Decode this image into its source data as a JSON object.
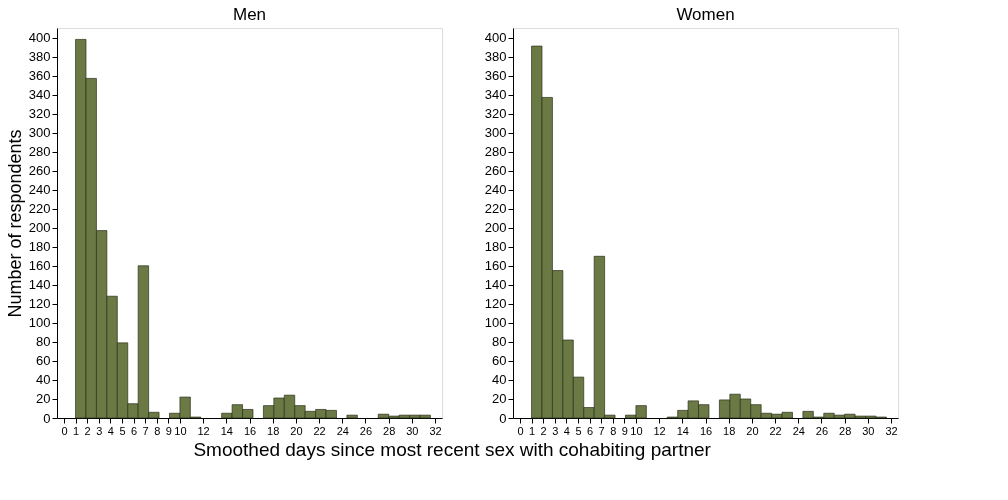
{
  "chart_data": [
    {
      "type": "histogram",
      "title": "Men",
      "xlabel": "Smoothed days since most recent sex with cohabiting partner",
      "ylabel": "Number of respondents",
      "color": "#6b7a45",
      "bins": [
        1.0,
        1.9,
        2.8,
        3.7,
        4.6,
        5.5,
        6.4,
        7.3,
        8.2,
        9.1,
        10.0,
        10.9,
        11.8,
        12.7,
        13.6,
        14.5,
        15.4,
        16.3,
        17.2,
        18.1,
        19.0,
        19.9,
        20.8,
        21.7,
        22.6,
        23.5,
        24.4,
        25.3,
        26.2,
        27.1,
        28.0,
        28.9,
        29.8,
        30.7,
        31.6
      ],
      "values": [
        398,
        357,
        197,
        128,
        79,
        15,
        160,
        6,
        0,
        5,
        22,
        1,
        0,
        0,
        5,
        14,
        9,
        0,
        13,
        21,
        24,
        13,
        7,
        9,
        8,
        0,
        3,
        0,
        0,
        4,
        2,
        3,
        3,
        3
      ],
      "xlim": [
        -0.6,
        32.6
      ],
      "xticks": [
        0,
        1,
        2,
        3,
        4,
        5,
        6,
        7,
        8,
        9,
        10,
        12,
        14,
        16,
        18,
        20,
        22,
        24,
        26,
        28,
        30,
        32
      ],
      "ylim": [
        0,
        410
      ],
      "yticks": [
        0,
        20,
        40,
        60,
        80,
        100,
        120,
        140,
        160,
        180,
        200,
        220,
        240,
        260,
        280,
        300,
        320,
        340,
        360,
        380,
        400
      ],
      "grid": false
    },
    {
      "type": "histogram",
      "title": "Women",
      "color": "#6b7a45",
      "bins": [
        1.0,
        1.9,
        2.8,
        3.7,
        4.6,
        5.5,
        6.4,
        7.3,
        8.2,
        9.1,
        10.0,
        10.9,
        11.8,
        12.7,
        13.6,
        14.5,
        15.4,
        16.3,
        17.2,
        18.1,
        19.0,
        19.9,
        20.8,
        21.7,
        22.6,
        23.5,
        24.4,
        25.3,
        26.2,
        27.1,
        28.0,
        28.9,
        29.8,
        30.7,
        31.6
      ],
      "values": [
        391,
        337,
        155,
        82,
        43,
        11,
        170,
        3,
        0,
        3,
        13,
        0,
        0,
        1,
        8,
        18,
        14,
        0,
        19,
        25,
        20,
        14,
        5,
        4,
        6,
        0,
        7,
        1,
        5,
        3,
        4,
        2,
        2,
        1
      ],
      "xlim": [
        -0.6,
        32.6
      ],
      "xticks": [
        0,
        1,
        2,
        3,
        4,
        5,
        6,
        7,
        8,
        9,
        10,
        12,
        14,
        16,
        18,
        20,
        22,
        24,
        26,
        28,
        30,
        32
      ],
      "ylim": [
        0,
        410
      ],
      "yticks": [
        0,
        20,
        40,
        60,
        80,
        100,
        120,
        140,
        160,
        180,
        200,
        220,
        240,
        260,
        280,
        300,
        320,
        340,
        360,
        380,
        400
      ],
      "grid": false
    }
  ]
}
